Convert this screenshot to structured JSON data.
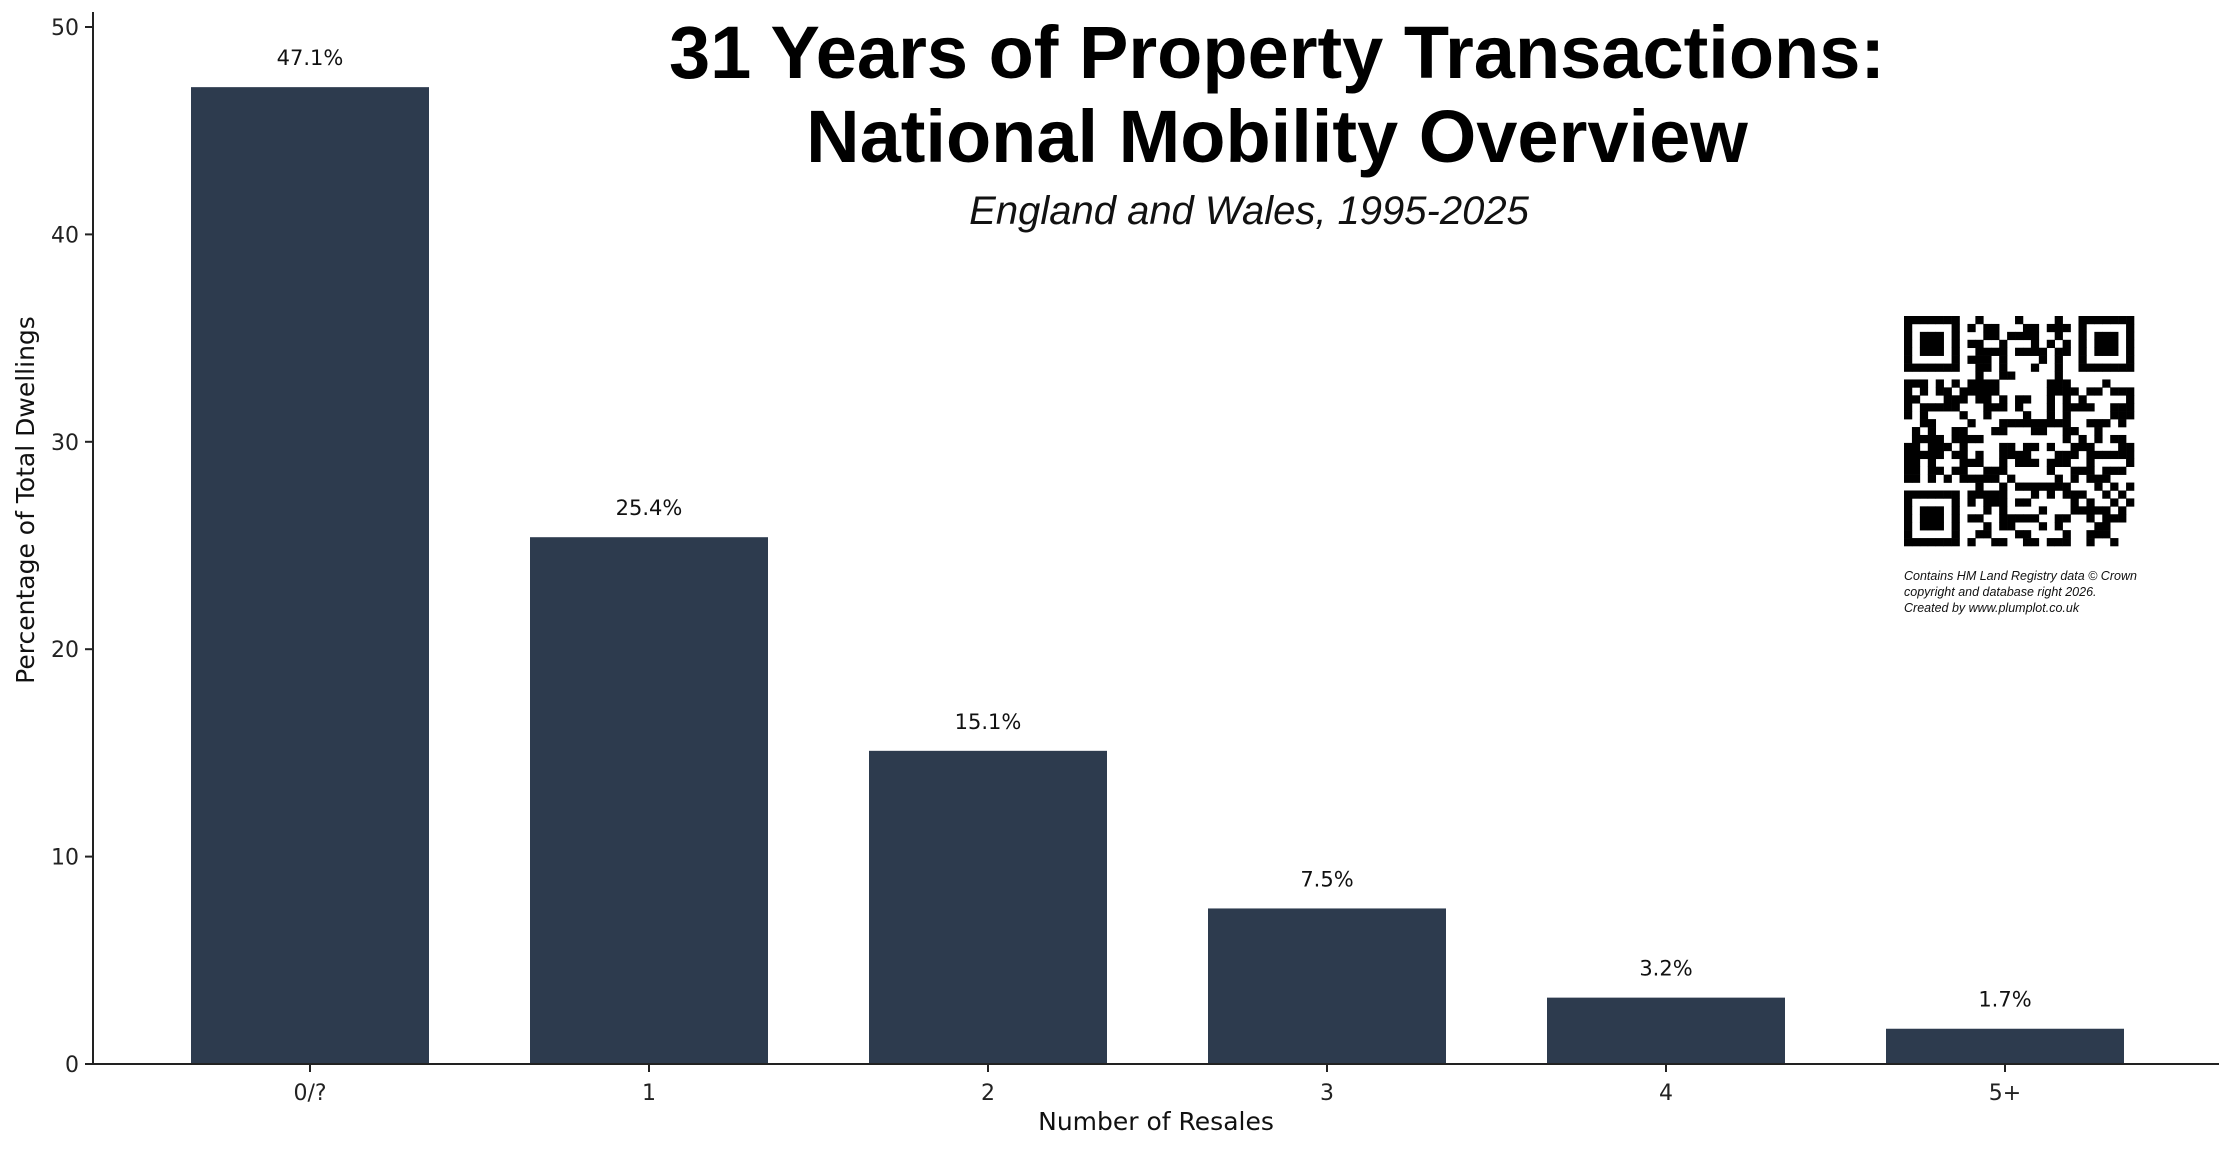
{
  "chart_data": {
    "type": "bar",
    "title": "31 Years of Property Transactions: National Mobility Overview",
    "title_lines": [
      "31 Years of Property Transactions:",
      "National Mobility Overview"
    ],
    "subtitle": "England and Wales, 1995-2025",
    "xlabel": "Number of Resales",
    "ylabel": "Percentage of Total Dwellings",
    "categories": [
      "0/?",
      "1",
      "2",
      "3",
      "4",
      "5+"
    ],
    "values": [
      47.1,
      25.4,
      15.1,
      7.5,
      3.2,
      1.7
    ],
    "data_labels": [
      "47.1%",
      "25.4%",
      "15.1%",
      "7.5%",
      "3.2%",
      "1.7%"
    ],
    "ylim": [
      0,
      50
    ],
    "yticks": [
      0,
      10,
      20,
      30,
      40,
      50
    ],
    "grid": false,
    "bar_color": "#2d3b4e"
  },
  "credit": {
    "lines": [
      "Contains HM Land Registry data © Crown",
      "copyright and database right 2026.",
      "Created by www.plumplot.co.uk"
    ],
    "qr_icon": "qr-code"
  }
}
